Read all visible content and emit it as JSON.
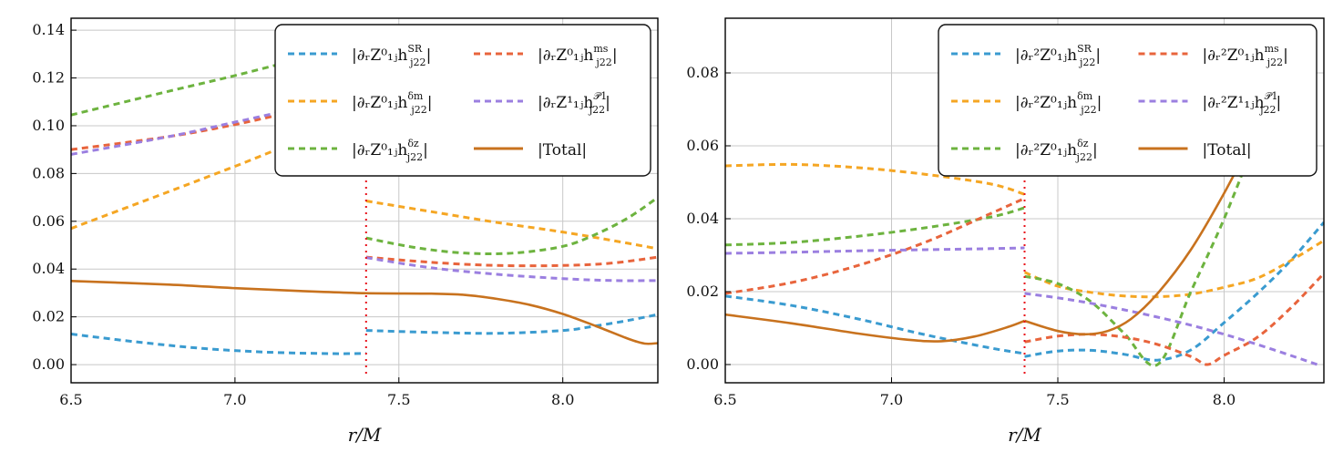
{
  "chart_data": [
    {
      "type": "line",
      "title": "",
      "xlabel": "r/M",
      "ylabel": "",
      "xlim": [
        6.5,
        8.29
      ],
      "ylim": [
        -0.0076,
        0.145
      ],
      "xticks": [
        6.5,
        7.0,
        7.5,
        8.0
      ],
      "xtick_labels": [
        "6.5",
        "7.0",
        "7.5",
        "8.0"
      ],
      "yticks": [
        0.0,
        0.02,
        0.04,
        0.06,
        0.08,
        0.1,
        0.12,
        0.14
      ],
      "ytick_labels": [
        "0.00",
        "0.02",
        "0.04",
        "0.06",
        "0.08",
        "0.10",
        "0.12",
        "0.14"
      ],
      "grid": true,
      "legend_position": "top-right",
      "legend_columns": 2,
      "vline": {
        "x": 7.4,
        "color": "#e8101a",
        "style": "dotted"
      },
      "series": [
        {
          "name": "|∂r Z0_1j h^SR_j22|",
          "legend_main": "|∂ᵣZ⁰₁ⱼh",
          "legend_sup": "SR",
          "legend_sub": "j22",
          "color": "#3a9bd0",
          "style": "dashed",
          "segments": [
            {
              "x": [
                6.5,
                6.7,
                6.9,
                7.1,
                7.3,
                7.4
              ],
              "y": [
                0.0128,
                0.0095,
                0.0068,
                0.0052,
                0.0046,
                0.0047
              ]
            },
            {
              "x": [
                7.4,
                7.6,
                7.8,
                8.0,
                8.1,
                8.2,
                8.29
              ],
              "y": [
                0.0143,
                0.0135,
                0.0131,
                0.0143,
                0.0162,
                0.0185,
                0.021
              ]
            }
          ]
        },
        {
          "name": "|∂r Z0_1j h^δm_j22|",
          "legend_main": "|∂ᵣZ⁰₁ⱼh",
          "legend_sup": "δm",
          "legend_sub": "j22",
          "color": "#f5a623",
          "style": "dashed",
          "segments": [
            {
              "x": [
                6.5,
                6.8,
                7.0,
                7.2,
                7.4
              ],
              "y": [
                0.057,
                0.0725,
                0.083,
                0.0935,
                0.1
              ]
            },
            {
              "x": [
                7.4,
                7.6,
                7.8,
                8.0,
                8.15,
                8.29
              ],
              "y": [
                0.0685,
                0.064,
                0.0595,
                0.0555,
                0.052,
                0.0485
              ]
            }
          ]
        },
        {
          "name": "|∂r Z0_1j h^δz_j22|",
          "legend_main": "|∂ᵣZ⁰₁ⱼh",
          "legend_sup": "δz",
          "legend_sub": "j22",
          "color": "#6db33f",
          "style": "dashed",
          "segments": [
            {
              "x": [
                6.5,
                6.8,
                7.0,
                7.2,
                7.4
              ],
              "y": [
                0.1045,
                0.1145,
                0.121,
                0.128,
                0.135
              ]
            },
            {
              "x": [
                7.4,
                7.55,
                7.7,
                7.85,
                8.0,
                8.1,
                8.2,
                8.29
              ],
              "y": [
                0.053,
                0.049,
                0.0467,
                0.0467,
                0.0495,
                0.0545,
                0.0615,
                0.07
              ]
            }
          ]
        },
        {
          "name": "|∂r Z0_1j h^ms_j22|",
          "legend_main": "|∂ᵣZ⁰₁ⱼh",
          "legend_sup": "ms",
          "legend_sub": "j22",
          "color": "#e8643c",
          "style": "dashed",
          "segments": [
            {
              "x": [
                6.5,
                6.8,
                7.0,
                7.2,
                7.4
              ],
              "y": [
                0.09,
                0.0955,
                0.1005,
                0.1065,
                0.112
              ]
            },
            {
              "x": [
                7.4,
                7.6,
                7.8,
                8.0,
                8.15,
                8.29
              ],
              "y": [
                0.045,
                0.0428,
                0.0415,
                0.0415,
                0.0425,
                0.045
              ]
            }
          ]
        },
        {
          "name": "|∂r Z1_1j h^P1_j22|",
          "legend_main": "|∂ᵣZ¹₁ⱼh",
          "legend_sup": "𝒫1",
          "legend_sub": "j22",
          "color": "#9b7fe0",
          "style": "dashed",
          "segments": [
            {
              "x": [
                6.5,
                6.8,
                7.0,
                7.2,
                7.4
              ],
              "y": [
                0.088,
                0.0955,
                0.1015,
                0.1075,
                0.113
              ]
            },
            {
              "x": [
                7.4,
                7.6,
                7.8,
                8.0,
                8.15,
                8.29
              ],
              "y": [
                0.0448,
                0.0405,
                0.0378,
                0.036,
                0.0352,
                0.0352
              ]
            }
          ]
        },
        {
          "name": "|Total|",
          "legend_main": "|Total|",
          "legend_sup": "",
          "legend_sub": "",
          "color": "#c8721e",
          "style": "solid",
          "segments": [
            {
              "x": [
                6.5,
                6.8,
                7.0,
                7.2,
                7.4,
                7.6,
                7.7,
                7.8,
                7.9,
                8.0,
                8.1,
                8.2,
                8.25,
                8.29
              ],
              "y": [
                0.035,
                0.0335,
                0.032,
                0.0308,
                0.0299,
                0.0297,
                0.0292,
                0.0275,
                0.025,
                0.0212,
                0.0162,
                0.0108,
                0.0088,
                0.009
              ]
            }
          ]
        }
      ]
    },
    {
      "type": "line",
      "title": "",
      "xlabel": "r/M",
      "ylabel": "",
      "xlim": [
        6.5,
        8.3
      ],
      "ylim": [
        -0.005,
        0.095
      ],
      "xticks": [
        6.5,
        7.0,
        7.5,
        8.0
      ],
      "xtick_labels": [
        "6.5",
        "7.0",
        "7.5",
        "8.0"
      ],
      "yticks": [
        0.0,
        0.02,
        0.04,
        0.06,
        0.08
      ],
      "ytick_labels": [
        "0.00",
        "0.02",
        "0.04",
        "0.06",
        "0.08"
      ],
      "grid": true,
      "legend_position": "top-right",
      "legend_columns": 2,
      "vline": {
        "x": 7.4,
        "color": "#e8101a",
        "style": "dotted"
      },
      "series": [
        {
          "name": "|∂r² Z0_1j h^SR_j22|",
          "legend_main": "|∂ᵣ²Z⁰₁ⱼh",
          "legend_sup": "SR",
          "legend_sub": "j22",
          "color": "#3a9bd0",
          "style": "dashed",
          "segments": [
            {
              "x": [
                6.5,
                6.7,
                6.9,
                7.1,
                7.3,
                7.4
              ],
              "y": [
                0.0188,
                0.0162,
                0.0125,
                0.0082,
                0.0045,
                0.003
              ]
            },
            {
              "x": [
                7.4,
                7.5,
                7.6,
                7.7,
                7.8,
                7.9,
                8.0,
                8.1,
                8.2,
                8.3
              ],
              "y": [
                0.0022,
                0.0037,
                0.0039,
                0.0028,
                0.0012,
                0.004,
                0.0115,
                0.0195,
                0.0285,
                0.039
              ]
            }
          ]
        },
        {
          "name": "|∂r² Z0_1j h^δm_j22|",
          "legend_main": "|∂ᵣ²Z⁰₁ⱼh",
          "legend_sup": "δm",
          "legend_sub": "j22",
          "color": "#f5a623",
          "style": "dashed",
          "segments": [
            {
              "x": [
                6.5,
                6.7,
                6.9,
                7.1,
                7.3,
                7.4
              ],
              "y": [
                0.0545,
                0.0549,
                0.054,
                0.0522,
                0.0495,
                0.0467
              ]
            },
            {
              "x": [
                7.4,
                7.5,
                7.6,
                7.7,
                7.8,
                7.9,
                8.0,
                8.1,
                8.2,
                8.3
              ],
              "y": [
                0.0253,
                0.0215,
                0.0198,
                0.0188,
                0.0186,
                0.0193,
                0.0212,
                0.0237,
                0.0285,
                0.034
              ]
            }
          ]
        },
        {
          "name": "|∂r² Z0_1j h^δz_j22|",
          "legend_main": "|∂ᵣ²Z⁰₁ⱼh",
          "legend_sup": "δz",
          "legend_sub": "j22",
          "color": "#6db33f",
          "style": "dashed",
          "segments": [
            {
              "x": [
                6.5,
                6.7,
                6.9,
                7.1,
                7.3,
                7.4
              ],
              "y": [
                0.0328,
                0.0335,
                0.0352,
                0.0375,
                0.0405,
                0.043
              ]
            },
            {
              "x": [
                7.4,
                7.5,
                7.6,
                7.7,
                7.8,
                7.9,
                8.0,
                8.1
              ],
              "y": [
                0.0242,
                0.0222,
                0.0172,
                0.0085,
                0.0,
                0.02,
                0.04,
                0.063
              ]
            }
          ]
        },
        {
          "name": "|∂r² Z0_1j h^ms_j22|",
          "legend_main": "|∂ᵣ²Z⁰₁ⱼh",
          "legend_sup": "ms",
          "legend_sub": "j22",
          "color": "#e8643c",
          "style": "dashed",
          "segments": [
            {
              "x": [
                6.5,
                6.7,
                6.9,
                7.1,
                7.3,
                7.4
              ],
              "y": [
                0.0195,
                0.0225,
                0.0272,
                0.0335,
                0.0415,
                0.0456
              ]
            },
            {
              "x": [
                7.4,
                7.5,
                7.6,
                7.7,
                7.8,
                7.9,
                7.95,
                8.0,
                8.1,
                8.2,
                8.3
              ],
              "y": [
                0.0062,
                0.0078,
                0.0083,
                0.0075,
                0.0055,
                0.0022,
                0.0,
                0.0025,
                0.0075,
                0.0155,
                0.025
              ]
            }
          ]
        },
        {
          "name": "|∂r² Z1_1j h^P1_j22|",
          "legend_main": "|∂ᵣ²Z¹₁ⱼh",
          "legend_sup": "𝒫1",
          "legend_sub": "j22",
          "color": "#9b7fe0",
          "style": "dashed",
          "segments": [
            {
              "x": [
                6.5,
                6.7,
                6.9,
                7.1,
                7.3,
                7.4
              ],
              "y": [
                0.0305,
                0.0308,
                0.0312,
                0.0315,
                0.0318,
                0.032
              ]
            },
            {
              "x": [
                7.4,
                7.5,
                7.6,
                7.7,
                7.8,
                7.9,
                8.0,
                8.1,
                8.2,
                8.28
              ],
              "y": [
                0.0195,
                0.0183,
                0.0168,
                0.015,
                0.013,
                0.0108,
                0.0083,
                0.0055,
                0.0025,
                0.0
              ]
            }
          ]
        },
        {
          "name": "|Total|",
          "legend_main": "|Total|",
          "legend_sup": "",
          "legend_sub": "",
          "color": "#c8721e",
          "style": "solid",
          "segments": [
            {
              "x": [
                6.5,
                6.7,
                6.9,
                7.05,
                7.15,
                7.25,
                7.35,
                7.4
              ],
              "y": [
                0.0137,
                0.0113,
                0.0085,
                0.0068,
                0.0064,
                0.0077,
                0.0103,
                0.012
              ]
            },
            {
              "x": [
                7.4,
                7.5,
                7.58,
                7.65,
                7.72,
                7.8,
                7.9,
                8.0,
                8.1
              ],
              "y": [
                0.012,
                0.0092,
                0.0083,
                0.0092,
                0.0125,
                0.0195,
                0.0315,
                0.047,
                0.0645
              ]
            }
          ]
        }
      ]
    }
  ]
}
